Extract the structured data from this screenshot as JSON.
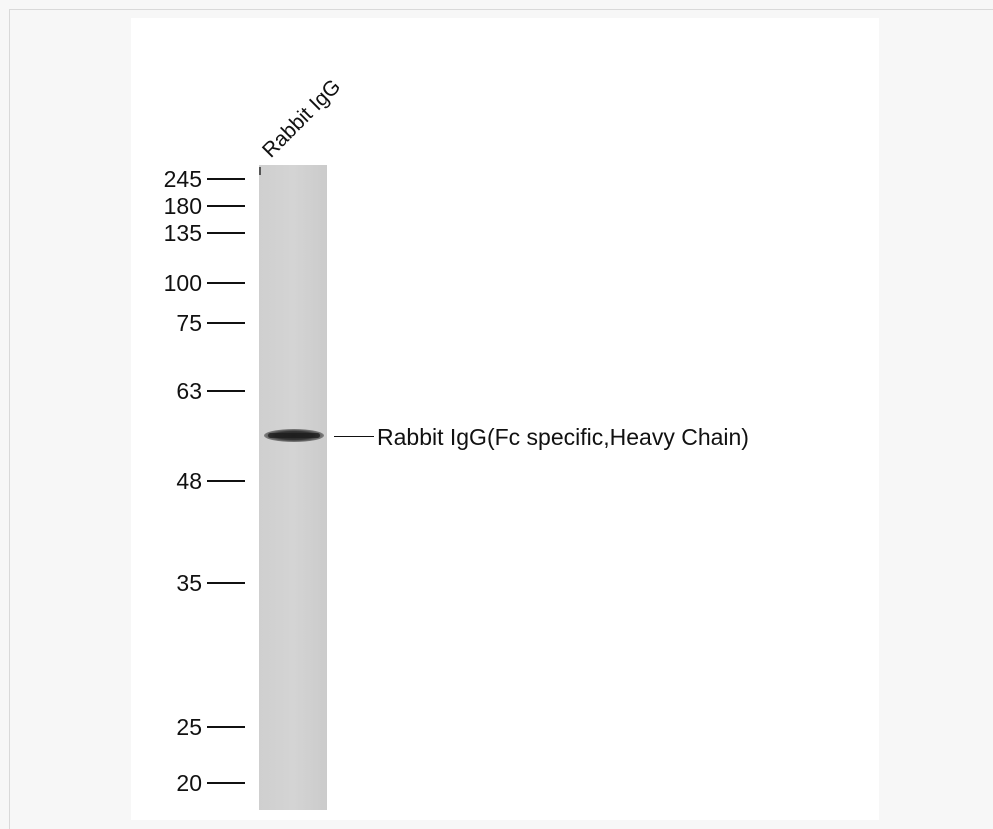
{
  "blot": {
    "lane_label": "Rabbit IgG",
    "band_label": "Rabbit IgG(Fc specific,Heavy Chain)",
    "markers": [
      "245",
      "180",
      "135",
      "100",
      "75",
      "63",
      "48",
      "35",
      "25",
      "20"
    ]
  }
}
